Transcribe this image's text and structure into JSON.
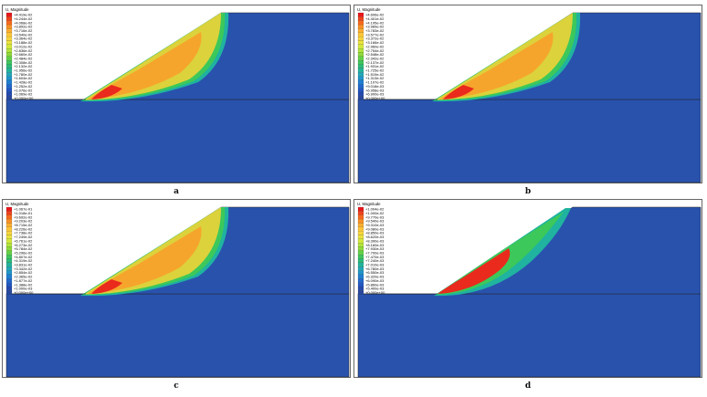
{
  "panels": [
    {
      "id": "a",
      "caption": "a",
      "legend_title": "U, Magnitude",
      "legend_values": [
        "+4.419e-02",
        "+4.244e-02",
        "+4.068e-02",
        "+3.892e-02",
        "+3.716e-02",
        "+3.540e-02",
        "+3.364e-02",
        "+3.188e-02",
        "+3.012e-02",
        "+2.836e-02",
        "+2.660e-02",
        "+2.484e-02",
        "+2.308e-02",
        "+2.132e-02",
        "+1.956e-02",
        "+1.780e-02",
        "+1.604e-02",
        "+1.428e-02",
        "+1.252e-02",
        "+1.076e-02",
        "+1.069e-02",
        "+0.000e+00"
      ],
      "zones": [
        "yellow",
        "orange",
        "red"
      ]
    },
    {
      "id": "b",
      "caption": "b",
      "legend_title": "U, Magnitude",
      "legend_values": [
        "+4.606e-02",
        "+4.401e-02",
        "+4.195e-02",
        "+3.989e-02",
        "+3.783e-02",
        "+3.577e-02",
        "+3.372e-02",
        "+3.166e-02",
        "+2.960e-02",
        "+2.754e-02",
        "+2.548e-02",
        "+2.342e-02",
        "+2.137e-02",
        "+1.931e-02",
        "+1.725e-02",
        "+1.519e-02",
        "+1.313e-02",
        "+1.107e-02",
        "+9.018e-03",
        "+6.958e-03",
        "+6.900e-03",
        "+0.000e+00"
      ],
      "zones": [
        "yellow",
        "orange",
        "red"
      ]
    },
    {
      "id": "c",
      "caption": "c",
      "legend_title": "U, Magnitude",
      "legend_values": [
        "+1.067e-01",
        "+1.018e-01",
        "+9.692e-02",
        "+9.203e-02",
        "+8.715e-02",
        "+8.226e-02",
        "+7.738e-02",
        "+7.249e-02",
        "+6.761e-02",
        "+6.273e-02",
        "+5.784e-02",
        "+5.296e-02",
        "+4.807e-02",
        "+4.319e-02",
        "+3.831e-02",
        "+3.342e-02",
        "+2.854e-02",
        "+2.365e-02",
        "+1.877e-02",
        "+1.388e-02",
        "+1.000e-03",
        "+0.000e+00"
      ],
      "zones": [
        "yellow",
        "orange",
        "red"
      ]
    },
    {
      "id": "d",
      "caption": "d",
      "legend_title": "U, Magnitude",
      "legend_values": [
        "+1.004e-02",
        "+1.000e-02",
        "+9.770e-03",
        "+9.540e-03",
        "+9.310e-03",
        "+9.080e-03",
        "+8.850e-03",
        "+8.620e-03",
        "+8.390e-03",
        "+8.160e-03",
        "+7.930e-03",
        "+7.700e-03",
        "+7.470e-03",
        "+7.240e-03",
        "+7.010e-03",
        "+6.780e-03",
        "+6.550e-03",
        "+6.320e-03",
        "+6.090e-03",
        "+5.860e-03",
        "+5.400e-03",
        "+0.000e+00"
      ],
      "zones": [
        "red"
      ]
    }
  ],
  "legend_colors": [
    "#e8171b",
    "#f0421a",
    "#f66a1d",
    "#fb8f24",
    "#feae2e",
    "#fdc536",
    "#f7d53c",
    "#ebe23d",
    "#d3e83b",
    "#b3e43a",
    "#8ddb3c",
    "#63d047",
    "#3fc55c",
    "#2bbc79",
    "#23b39a",
    "#22a8b8",
    "#1f95cb",
    "#1e7fd2",
    "#1f69ce",
    "#2256c4",
    "#254aae",
    "#26479e"
  ],
  "colors": {
    "background_blue": "#2952ad"
  }
}
